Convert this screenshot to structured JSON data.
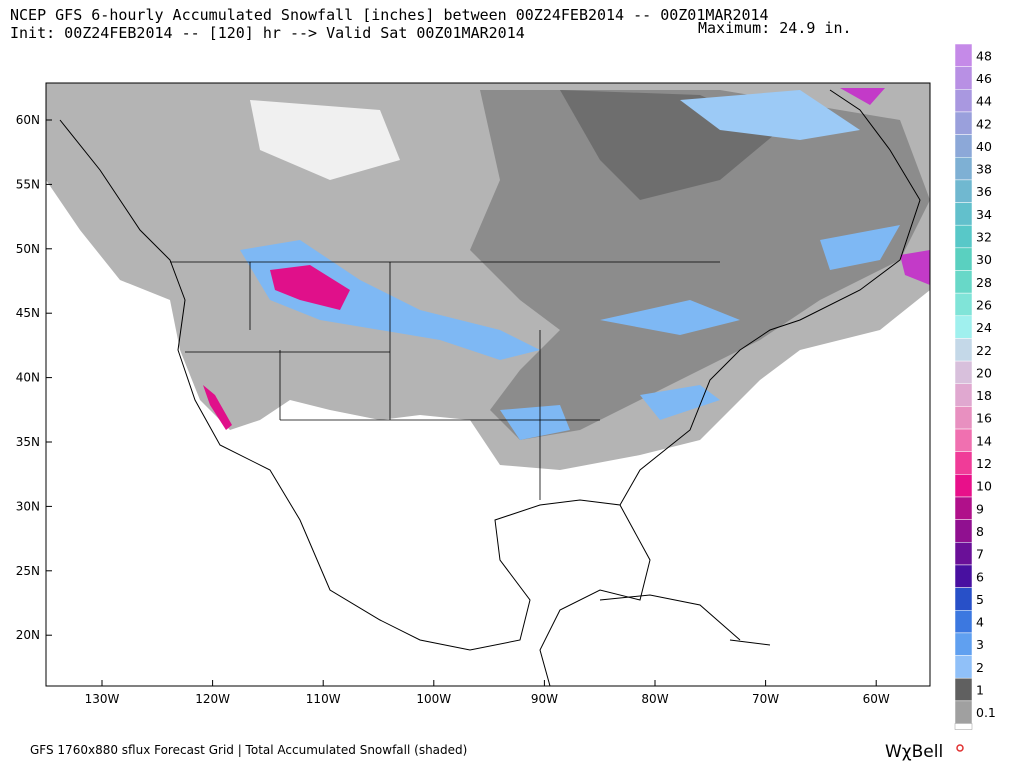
{
  "header": {
    "line1": "NCEP GFS 6-hourly Accumulated Snowfall [inches] between 00Z24FEB2014 -- 00Z01MAR2014",
    "line2": "Init: 00Z24FEB2014 -- [120] hr --> Valid Sat 00Z01MAR2014",
    "maximum": "Maximum:  24.9 in."
  },
  "map": {
    "lat_labels": [
      "60N",
      "55N",
      "50N",
      "45N",
      "40N",
      "35N",
      "30N",
      "25N",
      "20N"
    ],
    "lon_labels": [
      "130W",
      "120W",
      "110W",
      "100W",
      "90W",
      "80W",
      "70W",
      "60W"
    ]
  },
  "colorbar": {
    "levels": [
      {
        "label": "48",
        "color": "#c58ae8"
      },
      {
        "label": "46",
        "color": "#b890e4"
      },
      {
        "label": "44",
        "color": "#a998e0"
      },
      {
        "label": "42",
        "color": "#9aa0dc"
      },
      {
        "label": "40",
        "color": "#8ca8d8"
      },
      {
        "label": "38",
        "color": "#7eb0d4"
      },
      {
        "label": "36",
        "color": "#70b8d0"
      },
      {
        "label": "34",
        "color": "#62c0cc"
      },
      {
        "label": "32",
        "color": "#58c8c8"
      },
      {
        "label": "30",
        "color": "#5ad0c0"
      },
      {
        "label": "28",
        "color": "#68d8c8"
      },
      {
        "label": "26",
        "color": "#80e4d8"
      },
      {
        "label": "24",
        "color": "#a0f0ee"
      },
      {
        "label": "22",
        "color": "#c4d8e8"
      },
      {
        "label": "20",
        "color": "#d8c0dc"
      },
      {
        "label": "18",
        "color": "#e0a8d0"
      },
      {
        "label": "16",
        "color": "#e890c0"
      },
      {
        "label": "14",
        "color": "#f070b0"
      },
      {
        "label": "12",
        "color": "#f03c98"
      },
      {
        "label": "10",
        "color": "#e8108a"
      },
      {
        "label": "9",
        "color": "#b0108a"
      },
      {
        "label": "8",
        "color": "#901090"
      },
      {
        "label": "7",
        "color": "#6a1098"
      },
      {
        "label": "6",
        "color": "#4810a0"
      },
      {
        "label": "5",
        "color": "#2850c8"
      },
      {
        "label": "4",
        "color": "#3c78e0"
      },
      {
        "label": "3",
        "color": "#60a0f0"
      },
      {
        "label": "2",
        "color": "#90c0f8"
      },
      {
        "label": "1",
        "color": "#606060"
      },
      {
        "label": "0.1",
        "color": "#a0a0a0"
      }
    ]
  },
  "footer": {
    "text": "GFS 1760x880 sflux Forecast Grid | Total Accumulated Snowfall (shaded)",
    "logo": "WχBell"
  }
}
